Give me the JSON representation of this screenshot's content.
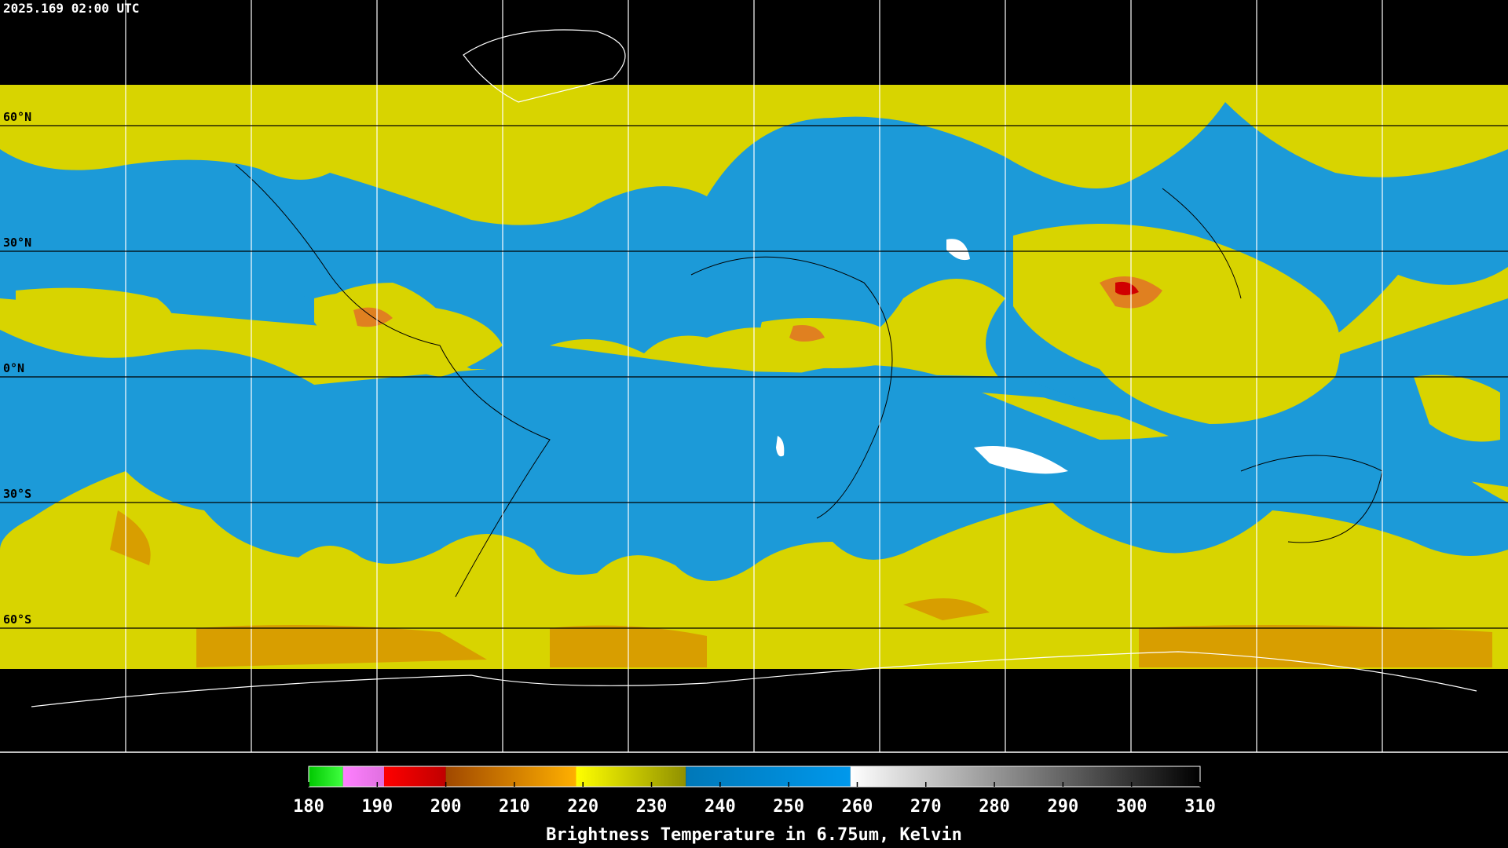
{
  "header": {
    "timestamp": "2025.169 02:00 UTC"
  },
  "map": {
    "lat_ticks": [
      {
        "value": 60,
        "label": "60°N"
      },
      {
        "value": 30,
        "label": "30°N"
      },
      {
        "value": 0,
        "label": "0°N"
      },
      {
        "value": -30,
        "label": "30°S"
      },
      {
        "value": -60,
        "label": "60°S"
      }
    ],
    "ylim": [
      -90,
      90
    ]
  },
  "colorbar": {
    "title": "Brightness Temperature in 6.75um, Kelvin",
    "range": [
      180,
      310
    ],
    "ticks": [
      180,
      190,
      200,
      210,
      220,
      230,
      240,
      250,
      260,
      270,
      280,
      290,
      300,
      310
    ],
    "segments": [
      {
        "from": 180,
        "to": 185,
        "colors": [
          "#00c800",
          "#40ff40"
        ]
      },
      {
        "from": 185,
        "to": 191,
        "colors": [
          "#ff80ff",
          "#e070e0"
        ]
      },
      {
        "from": 191,
        "to": 200,
        "colors": [
          "#ff0000",
          "#c00000"
        ]
      },
      {
        "from": 200,
        "to": 219,
        "colors": [
          "#a04800",
          "#ffb000"
        ]
      },
      {
        "from": 219,
        "to": 235,
        "colors": [
          "#ffff00",
          "#909000"
        ]
      },
      {
        "from": 235,
        "to": 259,
        "colors": [
          "#0078b8",
          "#0098ec"
        ]
      },
      {
        "from": 259,
        "to": 310,
        "colors": [
          "#ffffff",
          "#000000"
        ]
      }
    ]
  }
}
